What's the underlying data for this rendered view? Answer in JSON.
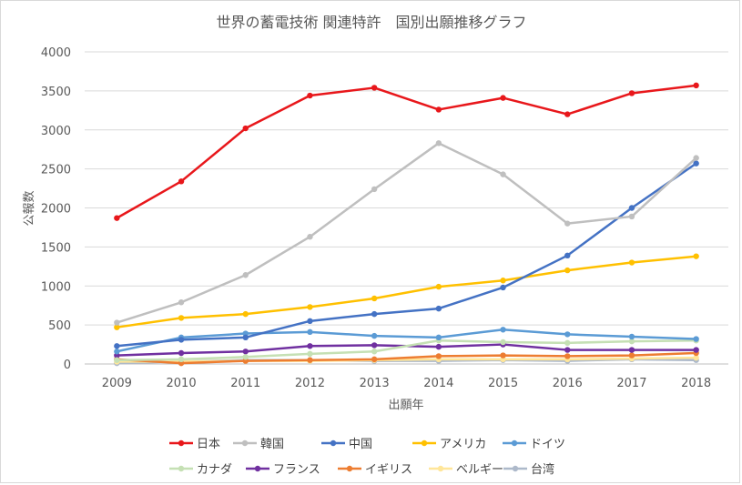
{
  "chart_data": {
    "type": "line",
    "title": "世界の蓄電技術 関連特許　国別出願推移グラフ",
    "xlabel": "出願年",
    "ylabel": "公報数",
    "categories": [
      "2009",
      "2010",
      "2011",
      "2012",
      "2013",
      "2014",
      "2015",
      "2016",
      "2017",
      "2018"
    ],
    "ylim": [
      0,
      4000
    ],
    "yticks": [
      "0",
      "500",
      "1000",
      "1500",
      "2000",
      "2500",
      "3000",
      "3500",
      "4000"
    ],
    "grid": true,
    "legend_position": "bottom",
    "series": [
      {
        "name": "日本",
        "color": "#e8171b",
        "values": [
          1870,
          2340,
          3020,
          3440,
          3540,
          3260,
          3410,
          3200,
          3470,
          3570
        ]
      },
      {
        "name": "韓国",
        "color": "#bfbfbf",
        "values": [
          530,
          790,
          1140,
          1630,
          2240,
          2830,
          2430,
          1800,
          1890,
          2640
        ]
      },
      {
        "name": "中国",
        "color": "#4472c4",
        "values": [
          230,
          310,
          340,
          550,
          640,
          710,
          980,
          1390,
          2000,
          2570
        ]
      },
      {
        "name": "アメリカ",
        "color": "#ffc000",
        "values": [
          470,
          590,
          640,
          730,
          840,
          990,
          1070,
          1200,
          1300,
          1380
        ]
      },
      {
        "name": "ドイツ",
        "color": "#5b9bd5",
        "values": [
          160,
          340,
          390,
          410,
          360,
          340,
          440,
          380,
          350,
          320
        ]
      },
      {
        "name": "カナダ",
        "color": "#c5e0b4",
        "values": [
          50,
          60,
          90,
          130,
          160,
          300,
          280,
          270,
          290,
          300
        ]
      },
      {
        "name": "フランス",
        "color": "#7030a0",
        "values": [
          110,
          140,
          160,
          230,
          240,
          220,
          250,
          180,
          180,
          180
        ]
      },
      {
        "name": "イギリス",
        "color": "#ed7d31",
        "values": [
          60,
          10,
          40,
          50,
          60,
          100,
          110,
          100,
          110,
          140
        ]
      },
      {
        "name": "ベルギー",
        "color": "#ffe699",
        "values": [
          30,
          30,
          40,
          40,
          50,
          60,
          60,
          60,
          70,
          80
        ]
      },
      {
        "name": "台湾",
        "color": "#adb9ca",
        "values": [
          10,
          30,
          50,
          50,
          40,
          40,
          50,
          40,
          60,
          50
        ]
      }
    ]
  }
}
